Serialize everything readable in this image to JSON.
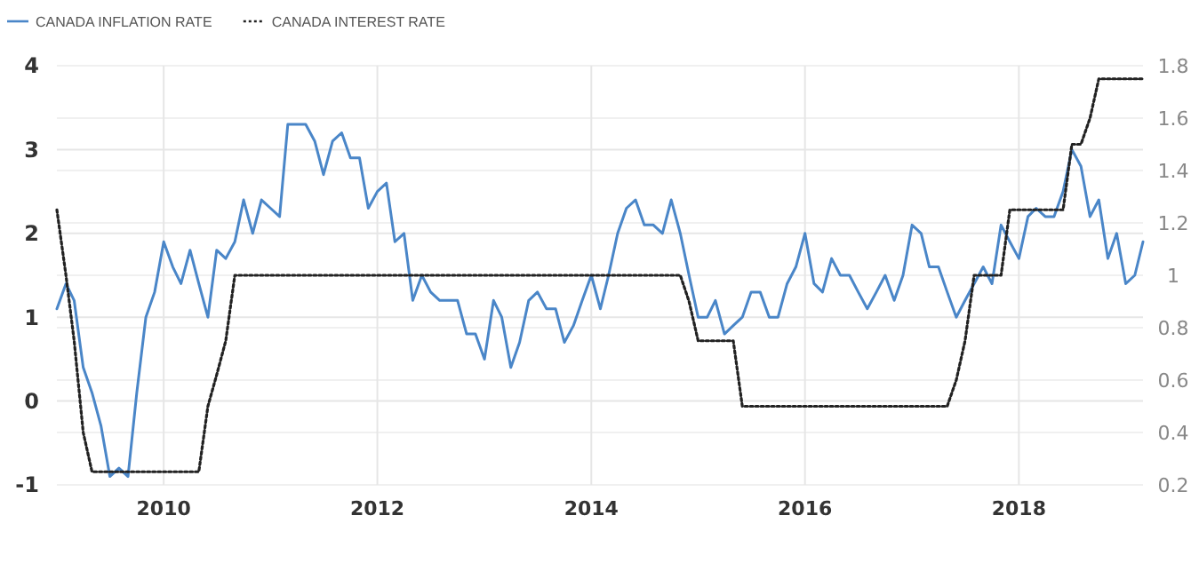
{
  "chart_data": {
    "type": "line",
    "legend": "top left",
    "grid": true,
    "x": [
      "2009-01",
      "2009-02",
      "2009-03",
      "2009-04",
      "2009-05",
      "2009-06",
      "2009-07",
      "2009-08",
      "2009-09",
      "2009-10",
      "2009-11",
      "2009-12",
      "2010-01",
      "2010-02",
      "2010-03",
      "2010-04",
      "2010-05",
      "2010-06",
      "2010-07",
      "2010-08",
      "2010-09",
      "2010-10",
      "2010-11",
      "2010-12",
      "2011-01",
      "2011-02",
      "2011-03",
      "2011-04",
      "2011-05",
      "2011-06",
      "2011-07",
      "2011-08",
      "2011-09",
      "2011-10",
      "2011-11",
      "2011-12",
      "2012-01",
      "2012-02",
      "2012-03",
      "2012-04",
      "2012-05",
      "2012-06",
      "2012-07",
      "2012-08",
      "2012-09",
      "2012-10",
      "2012-11",
      "2012-12",
      "2013-01",
      "2013-02",
      "2013-03",
      "2013-04",
      "2013-05",
      "2013-06",
      "2013-07",
      "2013-08",
      "2013-09",
      "2013-10",
      "2013-11",
      "2013-12",
      "2014-01",
      "2014-02",
      "2014-03",
      "2014-04",
      "2014-05",
      "2014-06",
      "2014-07",
      "2014-08",
      "2014-09",
      "2014-10",
      "2014-11",
      "2014-12",
      "2015-01",
      "2015-02",
      "2015-03",
      "2015-04",
      "2015-05",
      "2015-06",
      "2015-07",
      "2015-08",
      "2015-09",
      "2015-10",
      "2015-11",
      "2015-12",
      "2016-01",
      "2016-02",
      "2016-03",
      "2016-04",
      "2016-05",
      "2016-06",
      "2016-07",
      "2016-08",
      "2016-09",
      "2016-10",
      "2016-11",
      "2016-12",
      "2017-01",
      "2017-02",
      "2017-03",
      "2017-04",
      "2017-05",
      "2017-06",
      "2017-07",
      "2017-08",
      "2017-09",
      "2017-10",
      "2017-11",
      "2017-12",
      "2018-01",
      "2018-02",
      "2018-03",
      "2018-04",
      "2018-05",
      "2018-06",
      "2018-07",
      "2018-08",
      "2018-09",
      "2018-10",
      "2018-11",
      "2018-12",
      "2019-01",
      "2019-02",
      "2019-03"
    ],
    "xlim": [
      "2009-01",
      "2019-03"
    ],
    "xticks": [
      "2010",
      "2012",
      "2014",
      "2016",
      "2018"
    ],
    "ylim": [
      -1,
      4
    ],
    "yticks": [
      -1,
      0,
      1,
      2,
      3,
      4
    ],
    "y2lim": [
      0.2,
      1.8
    ],
    "y2ticks": [
      0.2,
      0.4,
      0.6,
      0.8,
      1,
      1.2,
      1.4,
      1.6,
      1.8
    ],
    "series": [
      {
        "name": "CANADA INFLATION RATE",
        "color": "#4a86c8",
        "line_style": "solid",
        "values": [
          1.1,
          1.4,
          1.2,
          0.4,
          0.1,
          -0.3,
          -0.9,
          -0.8,
          -0.9,
          0.1,
          1.0,
          1.3,
          1.9,
          1.6,
          1.4,
          1.8,
          1.4,
          1.0,
          1.8,
          1.7,
          1.9,
          2.4,
          2.0,
          2.4,
          2.3,
          2.2,
          3.3,
          3.3,
          3.3,
          3.1,
          2.7,
          3.1,
          3.2,
          2.9,
          2.9,
          2.3,
          2.5,
          2.6,
          1.9,
          2.0,
          1.2,
          1.5,
          1.3,
          1.2,
          1.2,
          1.2,
          0.8,
          0.8,
          0.5,
          1.2,
          1.0,
          0.4,
          0.7,
          1.2,
          1.3,
          1.1,
          1.1,
          0.7,
          0.9,
          1.2,
          1.5,
          1.1,
          1.5,
          2.0,
          2.3,
          2.4,
          2.1,
          2.1,
          2.0,
          2.4,
          2.0,
          1.5,
          1.0,
          1.0,
          1.2,
          0.8,
          0.9,
          1.0,
          1.3,
          1.3,
          1.0,
          1.0,
          1.4,
          1.6,
          2.0,
          1.4,
          1.3,
          1.7,
          1.5,
          1.5,
          1.3,
          1.1,
          1.3,
          1.5,
          1.2,
          1.5,
          2.1,
          2.0,
          1.6,
          1.6,
          1.3,
          1.0,
          1.2,
          1.4,
          1.6,
          1.4,
          2.1,
          1.9,
          1.7,
          2.2,
          2.3,
          2.2,
          2.2,
          2.5,
          3.0,
          2.8,
          2.2,
          2.4,
          1.7,
          2.0,
          1.4,
          1.5,
          1.9
        ]
      },
      {
        "name": "CANADA INTEREST RATE",
        "color": "#222222",
        "line_style": "dotted",
        "axis": "y2",
        "values": [
          1.25,
          1.0,
          0.75,
          0.4,
          0.25,
          0.25,
          0.25,
          0.25,
          0.25,
          0.25,
          0.25,
          0.25,
          0.25,
          0.25,
          0.25,
          0.25,
          0.25,
          0.5,
          0.62,
          0.75,
          1,
          1,
          1,
          1,
          1,
          1,
          1,
          1,
          1,
          1,
          1,
          1,
          1,
          1,
          1,
          1,
          1,
          1,
          1,
          1,
          1,
          1,
          1,
          1,
          1,
          1,
          1,
          1,
          1,
          1,
          1,
          1,
          1,
          1,
          1,
          1,
          1,
          1,
          1,
          1,
          1,
          1,
          1,
          1,
          1,
          1,
          1,
          1,
          1,
          1,
          1,
          0.9,
          0.75,
          0.75,
          0.75,
          0.75,
          0.75,
          0.5,
          0.5,
          0.5,
          0.5,
          0.5,
          0.5,
          0.5,
          0.5,
          0.5,
          0.5,
          0.5,
          0.5,
          0.5,
          0.5,
          0.5,
          0.5,
          0.5,
          0.5,
          0.5,
          0.5,
          0.5,
          0.5,
          0.5,
          0.5,
          0.6,
          0.75,
          1,
          1,
          1,
          1,
          1.25,
          1.25,
          1.25,
          1.25,
          1.25,
          1.25,
          1.25,
          1.5,
          1.5,
          1.6,
          1.75,
          1.75,
          1.75,
          1.75,
          1.75,
          1.75
        ]
      }
    ]
  }
}
